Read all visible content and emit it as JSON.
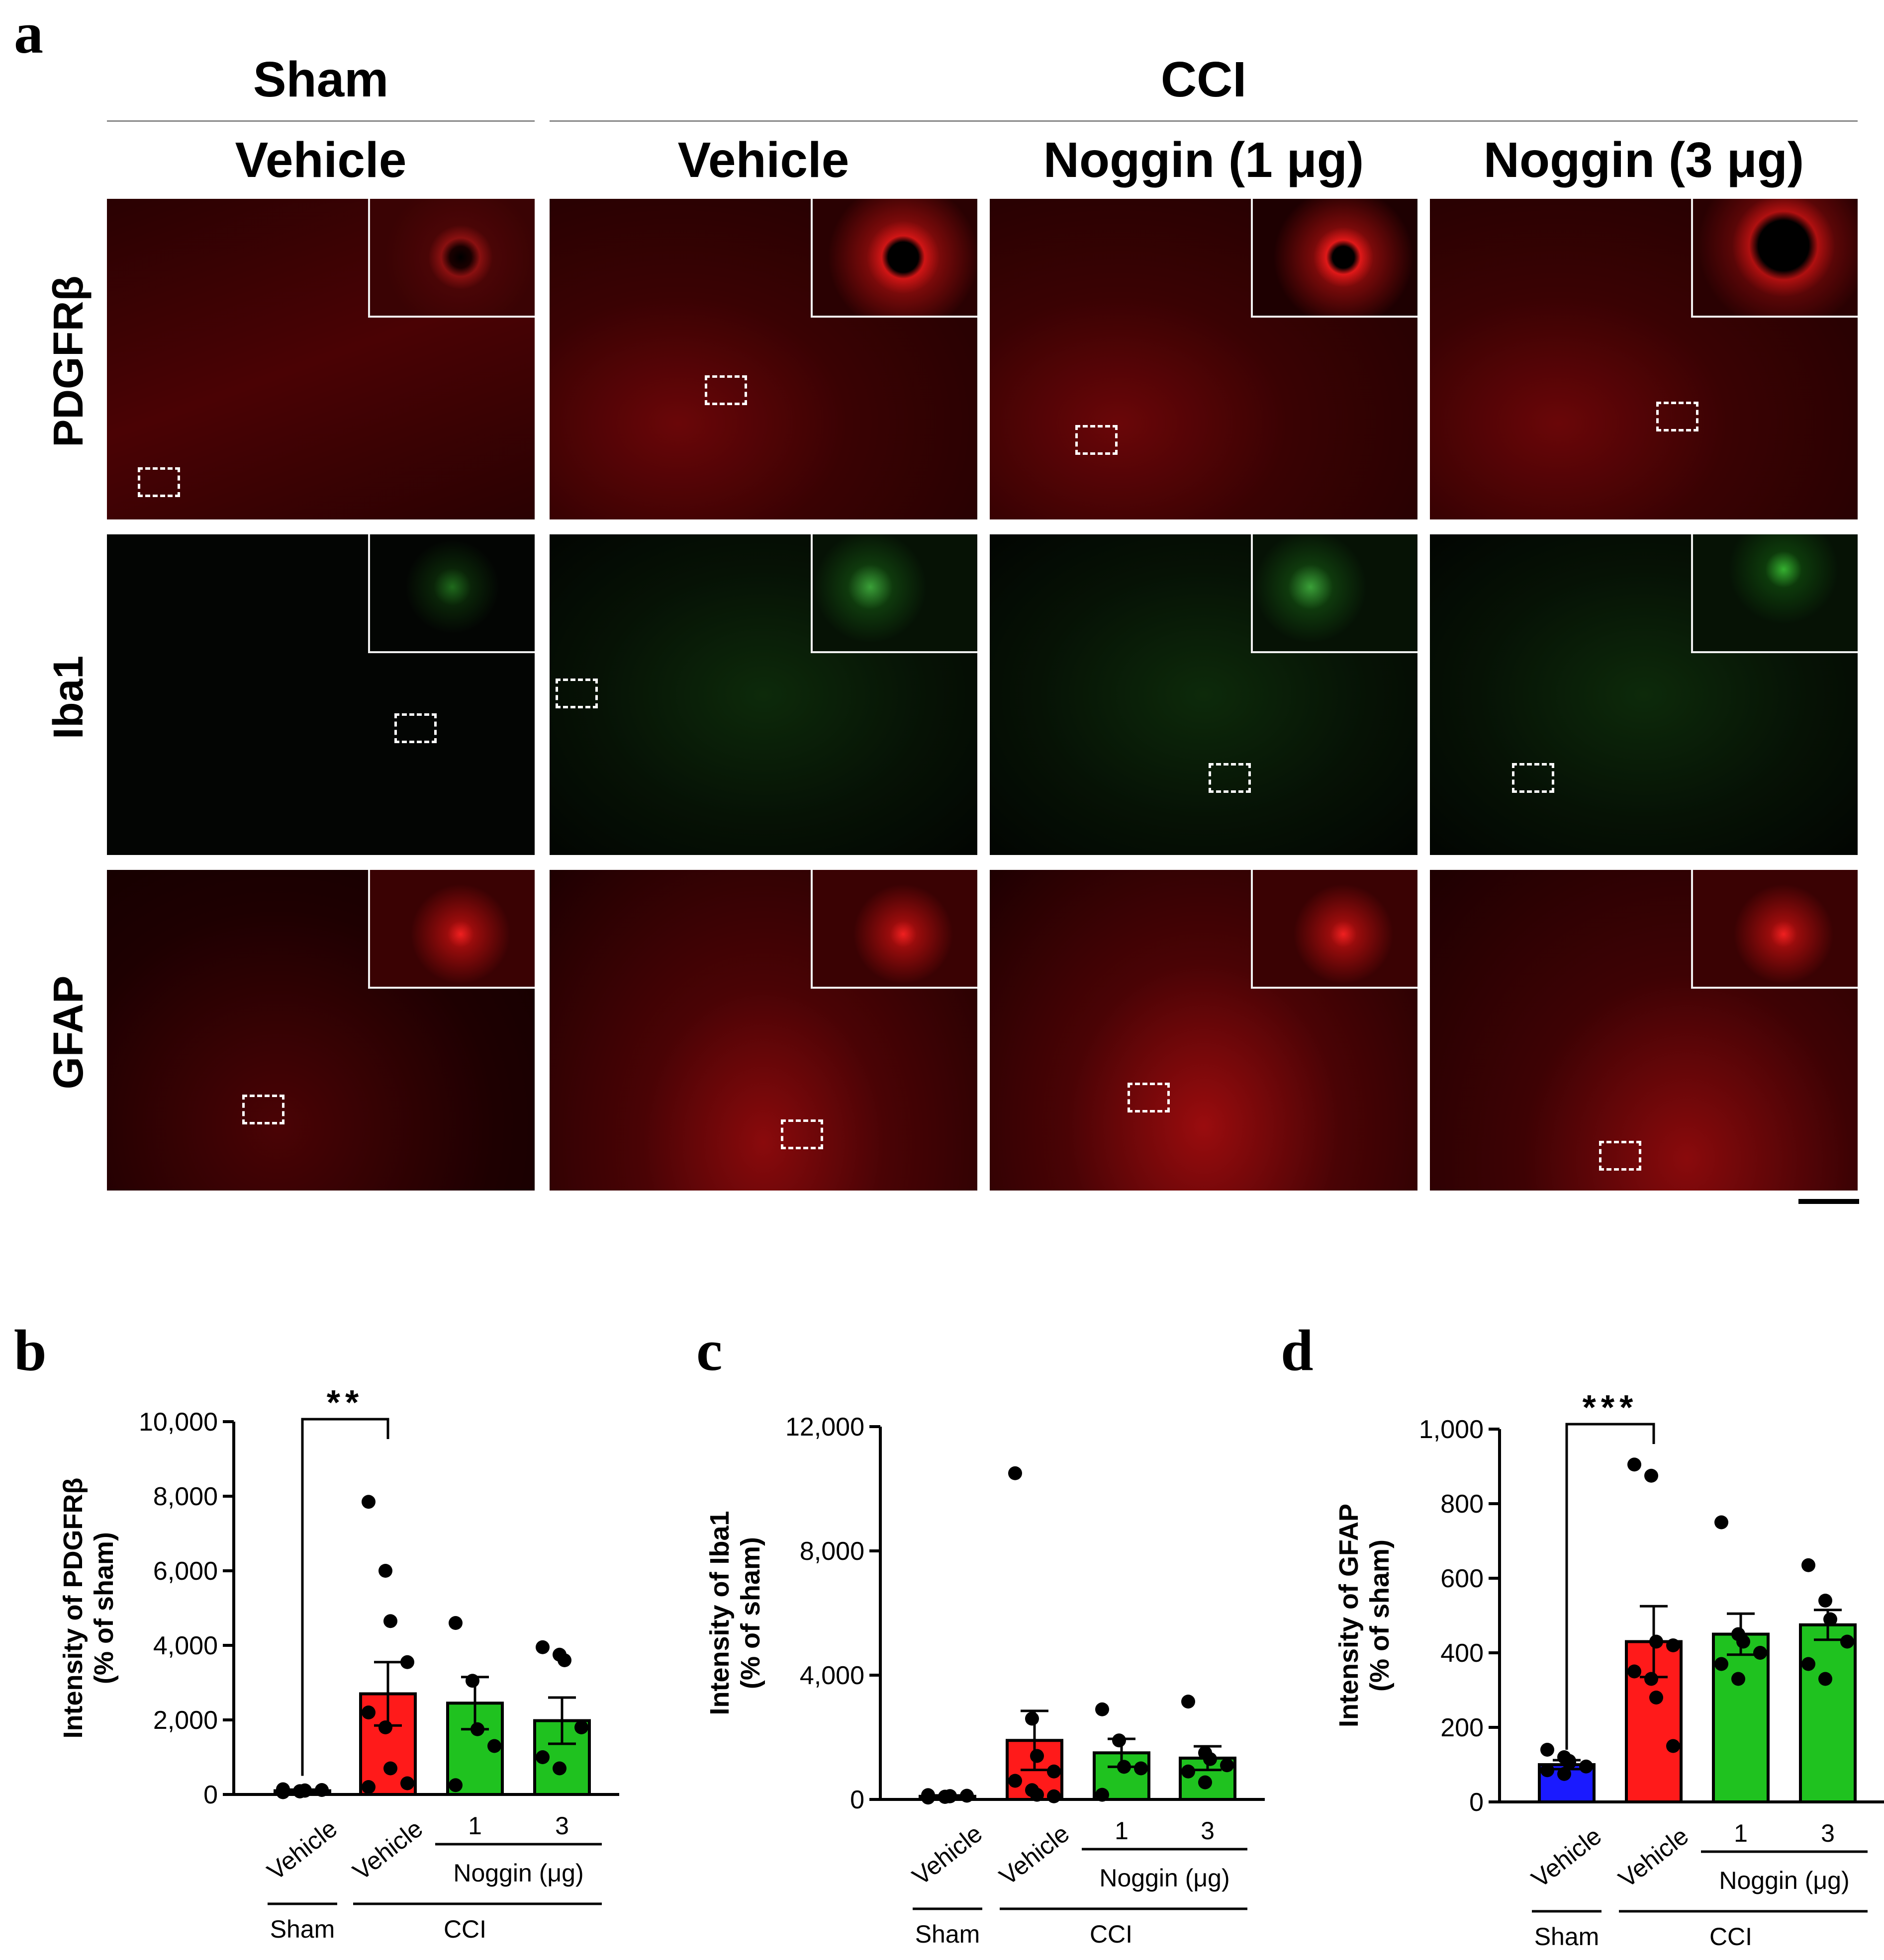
{
  "panels": {
    "a": "a",
    "b": "b",
    "c": "c",
    "d": "d"
  },
  "image_grid": {
    "groups": [
      "Sham",
      "CCI"
    ],
    "columns": [
      "Vehicle",
      "Vehicle",
      "Noggin (1 μg)",
      "Noggin (3 μg)"
    ],
    "rows": [
      "PDGFRβ",
      "Iba1",
      "GFAP"
    ]
  },
  "chart_data": [
    {
      "type": "bar",
      "panel": "b",
      "ylabel": "Intensity of PDGFRβ\n(% of sham)",
      "ylim": [
        0,
        10000
      ],
      "yticks": [
        "0",
        "2,000",
        "4,000",
        "6,000",
        "8,000",
        "10,000"
      ],
      "ytick_values": [
        0,
        2000,
        4000,
        6000,
        8000,
        10000
      ],
      "categories": [
        "Vehicle",
        "Vehicle",
        "1",
        "3"
      ],
      "group_labels": {
        "sham": "Sham",
        "cci": "CCI",
        "noggin": "Noggin (μg)"
      },
      "values": [
        100,
        2700,
        2450,
        1980
      ],
      "sem": [
        30,
        850,
        700,
        620
      ],
      "points": [
        [
          60,
          80,
          100,
          120,
          140,
          90,
          110
        ],
        [
          7850,
          6000,
          4650,
          3550,
          2200,
          1800,
          700,
          300,
          200
        ],
        [
          4600,
          3050,
          1750,
          1300,
          250
        ],
        [
          3950,
          3750,
          3600,
          1800,
          1000,
          700
        ]
      ],
      "colors": [
        "#1a1aff",
        "#ff1a1a",
        "#1fc21f",
        "#1fc21f"
      ],
      "significance": "**"
    },
    {
      "type": "bar",
      "panel": "c",
      "ylabel": "Intensity of Iba1\n(% of sham)",
      "ylim": [
        0,
        12000
      ],
      "yticks": [
        "0",
        "4,000",
        "8,000",
        "12,000"
      ],
      "ytick_values": [
        0,
        4000,
        8000,
        12000
      ],
      "categories": [
        "Vehicle",
        "Vehicle",
        "1",
        "3"
      ],
      "group_labels": {
        "sham": "Sham",
        "cci": "CCI",
        "noggin": "Noggin (μg)"
      },
      "values": [
        100,
        1900,
        1500,
        1330
      ],
      "sem": [
        30,
        950,
        450,
        380
      ],
      "points": [
        [
          60,
          80,
          100,
          120,
          140,
          90,
          110
        ],
        [
          10500,
          2600,
          1400,
          900,
          600,
          300,
          150,
          100
        ],
        [
          2900,
          1900,
          1050,
          1000,
          150
        ],
        [
          3150,
          1500,
          1300,
          1100,
          900,
          550
        ]
      ],
      "colors": [
        "#1a1aff",
        "#ff1a1a",
        "#1fc21f",
        "#1fc21f"
      ]
    },
    {
      "type": "bar",
      "panel": "d",
      "ylabel": "Intensity of GFAP\n(% of sham)",
      "ylim": [
        0,
        1000
      ],
      "yticks": [
        "0",
        "200",
        "400",
        "600",
        "800",
        "1,000"
      ],
      "ytick_values": [
        0,
        200,
        400,
        600,
        800,
        1000
      ],
      "categories": [
        "Vehicle",
        "Vehicle",
        "1",
        "3"
      ],
      "group_labels": {
        "sham": "Sham",
        "cci": "CCI",
        "noggin": "Noggin (μg)"
      },
      "values": [
        100,
        430,
        450,
        475
      ],
      "sem": [
        12,
        95,
        55,
        40
      ],
      "points": [
        [
          140,
          120,
          105,
          95,
          85,
          75,
          110
        ],
        [
          905,
          875,
          430,
          420,
          350,
          330,
          280,
          150
        ],
        [
          750,
          450,
          430,
          400,
          370,
          330
        ],
        [
          635,
          540,
          490,
          430,
          370,
          330
        ]
      ],
      "colors": [
        "#1a1aff",
        "#ff1a1a",
        "#1fc21f",
        "#1fc21f"
      ],
      "significance": "***"
    }
  ]
}
